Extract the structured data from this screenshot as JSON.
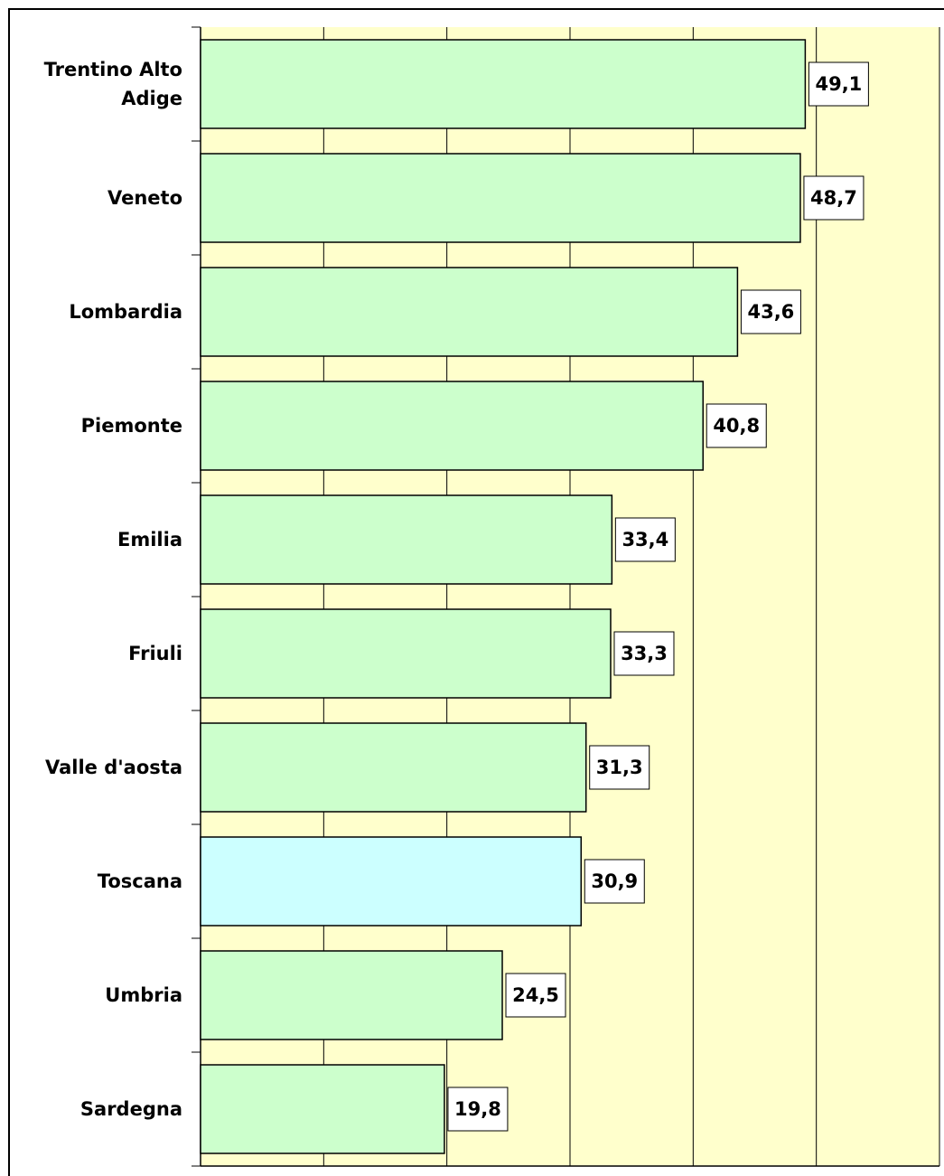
{
  "chart_data": {
    "type": "barh",
    "categories": [
      "Trentino Alto Adige",
      "Veneto",
      "Lombardia",
      "Piemonte",
      "Emilia",
      "Friuli",
      "Valle d'aosta",
      "Toscana",
      "Umbria",
      "Sardegna"
    ],
    "values": [
      49.1,
      48.7,
      43.6,
      40.8,
      33.4,
      33.3,
      31.3,
      30.9,
      24.5,
      19.8
    ],
    "value_labels": [
      "49,1",
      "48,7",
      "43,6",
      "40,8",
      "33,4",
      "33,3",
      "31,3",
      "30,9",
      "24,5",
      "19,8"
    ],
    "colors": [
      "#ccffcc",
      "#ccffcc",
      "#ccffcc",
      "#ccffcc",
      "#ccffcc",
      "#ccffcc",
      "#ccffcc",
      "#ccffff",
      "#ccffcc",
      "#ccffcc"
    ],
    "xlim": [
      0,
      60
    ],
    "xticks": [
      0,
      10,
      20,
      30,
      40,
      50,
      60
    ],
    "grid": true
  }
}
